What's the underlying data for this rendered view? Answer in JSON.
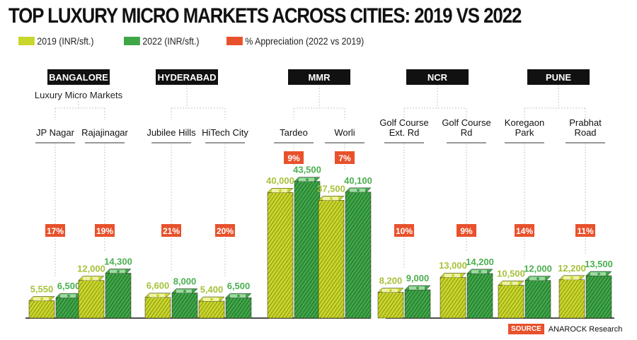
{
  "title": "TOP LUXURY MICRO MARKETS ACROSS CITIES: 2019 VS 2022",
  "legend": [
    {
      "label": "2019 (INR/sft.)",
      "color": "#c9d62b"
    },
    {
      "label": "2022 (INR/sft.)",
      "color": "#3fa648"
    },
    {
      "label": "% Appreciation (2022 vs 2019)",
      "color": "#e8512c"
    }
  ],
  "subtitle": "Luxury Micro Markets",
  "source": {
    "tag": "SOURCE",
    "text": "ANAROCK Research"
  },
  "colors": {
    "y2019": "#c9d62b",
    "y2019_dark": "#8f9a12",
    "y2022": "#3fa648",
    "y2022_dark": "#1f6e2a",
    "appreciation": "#e8512c",
    "label2019": "#a6c23a",
    "label2022": "#4caf50"
  },
  "chart_data": {
    "type": "bar",
    "title": "TOP LUXURY MICRO MARKETS ACROSS CITIES: 2019 VS 2022",
    "xlabel": "Luxury Micro Markets",
    "ylabel": "INR/sft.",
    "ylim": [
      0,
      45000
    ],
    "legend_position": "top-left",
    "grid": false,
    "cities": [
      {
        "name": "BANGALORE",
        "markets": [
          {
            "name": [
              "JP Nagar"
            ],
            "v2019": 5550,
            "v2022": 6500,
            "l2019": "5,550",
            "l2022": "6,500",
            "pct": "17%"
          },
          {
            "name": [
              "Rajajinagar"
            ],
            "v2019": 12000,
            "v2022": 14300,
            "l2019": "12,000",
            "l2022": "14,300",
            "pct": "19%"
          }
        ]
      },
      {
        "name": "HYDERABAD",
        "markets": [
          {
            "name": [
              "Jubilee Hills"
            ],
            "v2019": 6600,
            "v2022": 8000,
            "l2019": "6,600",
            "l2022": "8,000",
            "pct": "21%"
          },
          {
            "name": [
              "HiTech City"
            ],
            "v2019": 5400,
            "v2022": 6500,
            "l2019": "5,400",
            "l2022": "6,500",
            "pct": "20%"
          }
        ]
      },
      {
        "name": "MMR",
        "markets": [
          {
            "name": [
              "Tardeo"
            ],
            "v2019": 40000,
            "v2022": 43500,
            "l2019": "40,000",
            "l2022": "43,500",
            "pct": "9%"
          },
          {
            "name": [
              "Worli"
            ],
            "v2019": 37500,
            "v2022": 40100,
            "l2019": "37,500",
            "l2022": "40,100",
            "pct": "7%"
          }
        ]
      },
      {
        "name": "NCR",
        "markets": [
          {
            "name": [
              "Golf Course",
              "Ext. Rd"
            ],
            "v2019": 8200,
            "v2022": 9000,
            "l2019": "8,200",
            "l2022": "9,000",
            "pct": "10%"
          },
          {
            "name": [
              "Golf Course",
              "Rd"
            ],
            "v2019": 13000,
            "v2022": 14200,
            "l2019": "13,000",
            "l2022": "14,200",
            "pct": "9%"
          }
        ]
      },
      {
        "name": "PUNE",
        "markets": [
          {
            "name": [
              "Koregaon",
              "Park"
            ],
            "v2019": 10500,
            "v2022": 12000,
            "l2019": "10,500",
            "l2022": "12,000",
            "pct": "14%"
          },
          {
            "name": [
              "Prabhat",
              "Road"
            ],
            "v2019": 12200,
            "v2022": 13500,
            "l2019": "12,200",
            "l2022": "13,500",
            "pct": "11%"
          }
        ]
      }
    ]
  }
}
